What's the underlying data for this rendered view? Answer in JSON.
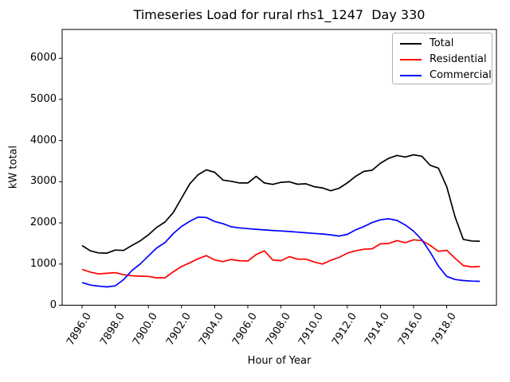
{
  "chart_data": {
    "type": "line",
    "title": "Timeseries Load for rural rhs1_1247  Day 330",
    "xlabel": "Hour of Year",
    "ylabel": "kW total",
    "xlim": [
      7894.8,
      7921.0
    ],
    "ylim": [
      0,
      6700
    ],
    "grid": false,
    "legend": {
      "position": "upper right",
      "border_color": "#b0b0b0"
    },
    "x_ticks": {
      "values": [
        7896,
        7898,
        7900,
        7902,
        7904,
        7906,
        7908,
        7910,
        7912,
        7914,
        7916,
        7918
      ],
      "labels": [
        "7896.0",
        "7898.0",
        "7900.0",
        "7902.0",
        "7904.0",
        "7906.0",
        "7908.0",
        "7910.0",
        "7912.0",
        "7914.0",
        "7916.0",
        "7918.0"
      ],
      "rotation_deg": 58
    },
    "y_ticks": {
      "values": [
        0,
        1000,
        2000,
        3000,
        4000,
        5000,
        6000
      ],
      "labels": [
        "0",
        "1000",
        "2000",
        "3000",
        "4000",
        "5000",
        "6000"
      ]
    },
    "x": [
      7896,
      7896.5,
      7897,
      7897.5,
      7898,
      7898.5,
      7899,
      7899.5,
      7900,
      7900.5,
      7901,
      7901.5,
      7902,
      7902.5,
      7903,
      7903.5,
      7904,
      7904.5,
      7905,
      7905.5,
      7906,
      7906.5,
      7907,
      7907.5,
      7908,
      7908.5,
      7909,
      7909.5,
      7910,
      7910.5,
      7911,
      7911.5,
      7912,
      7912.5,
      7913,
      7913.5,
      7914,
      7914.5,
      7915,
      7915.5,
      7916,
      7916.5,
      7917,
      7917.5,
      7918,
      7918.5,
      7919,
      7919.5,
      7920
    ],
    "series": [
      {
        "name": "Total",
        "color": "#000000",
        "values": [
          1450,
          1320,
          1270,
          1265,
          1340,
          1330,
          1450,
          1560,
          1710,
          1890,
          2020,
          2250,
          2600,
          2950,
          3170,
          3290,
          3230,
          3040,
          3010,
          2970,
          2970,
          3130,
          2970,
          2935,
          2985,
          3000,
          2940,
          2950,
          2880,
          2850,
          2780,
          2840,
          2970,
          3130,
          3250,
          3280,
          3450,
          3570,
          3640,
          3600,
          3655,
          3620,
          3400,
          3330,
          2880,
          2150,
          1600,
          1560,
          1555
        ]
      },
      {
        "name": "Residential",
        "color": "#ff0000",
        "values": [
          870,
          805,
          760,
          775,
          790,
          740,
          715,
          705,
          700,
          665,
          665,
          810,
          940,
          1030,
          1130,
          1205,
          1100,
          1060,
          1110,
          1080,
          1075,
          1230,
          1320,
          1100,
          1080,
          1180,
          1120,
          1120,
          1050,
          1000,
          1090,
          1160,
          1265,
          1320,
          1360,
          1370,
          1490,
          1500,
          1570,
          1520,
          1590,
          1570,
          1455,
          1310,
          1335,
          1140,
          965,
          930,
          940
        ]
      },
      {
        "name": "Commercial",
        "color": "#0000ff",
        "values": [
          550,
          490,
          465,
          445,
          470,
          620,
          840,
          1000,
          1195,
          1390,
          1520,
          1740,
          1915,
          2040,
          2140,
          2130,
          2035,
          1980,
          1905,
          1880,
          1860,
          1845,
          1830,
          1815,
          1805,
          1790,
          1775,
          1760,
          1745,
          1730,
          1710,
          1680,
          1720,
          1830,
          1910,
          2010,
          2075,
          2100,
          2060,
          1950,
          1800,
          1590,
          1290,
          950,
          700,
          625,
          600,
          585,
          580
        ]
      }
    ]
  }
}
